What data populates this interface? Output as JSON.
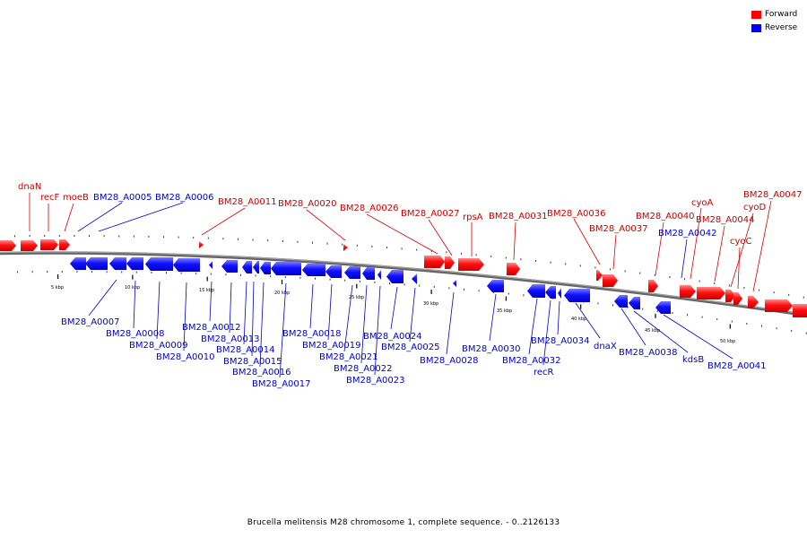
{
  "legend": {
    "forward_label": "Forward",
    "reverse_label": "Reverse",
    "forward_color": "#ff0000",
    "reverse_color": "#0000ff"
  },
  "caption": "Brucella melitensis M28 chromosome 1, complete sequence. - 0..2126133",
  "ruler": {
    "tick_labels": [
      "5 kbp",
      "10 kbp",
      "15 kbp",
      "20 kbp",
      "25 kbp",
      "30 kbp",
      "35 kbp",
      "40 kbp",
      "45 kbp",
      "50 kbp"
    ]
  },
  "genes": {
    "forward_labeled": [
      "dnaN",
      "recF",
      "moeB",
      "BM28_A0011",
      "BM28_A0020",
      "BM28_A0026",
      "BM28_A0027",
      "rpsA",
      "BM28_A0031",
      "BM28_A0036",
      "BM28_A0037",
      "BM28_A0040",
      "cyoA",
      "BM28_A0044",
      "cyoD",
      "cyoC",
      "BM28_A0047"
    ],
    "reverse_labeled_top": [
      "BM28_A0005",
      "BM28_A0006",
      "BM28_A0042"
    ],
    "reverse_labeled_bottom": [
      "BM28_A0007",
      "BM28_A0008",
      "BM28_A0009",
      "BM28_A0010",
      "BM28_A0012",
      "BM28_A0013",
      "BM28_A0014",
      "BM28_A0015",
      "BM28_A0016",
      "BM28_A0017",
      "BM28_A0018",
      "BM28_A0019",
      "BM28_A0021",
      "BM28_A0022",
      "BM28_A0023",
      "BM28_A0024",
      "BM28_A0025",
      "BM28_A0028",
      "BM28_A0030",
      "BM28_A0032",
      "recR",
      "BM28_A0034",
      "dnaX",
      "BM28_A0038",
      "kdsB",
      "BM28_A0041"
    ]
  }
}
